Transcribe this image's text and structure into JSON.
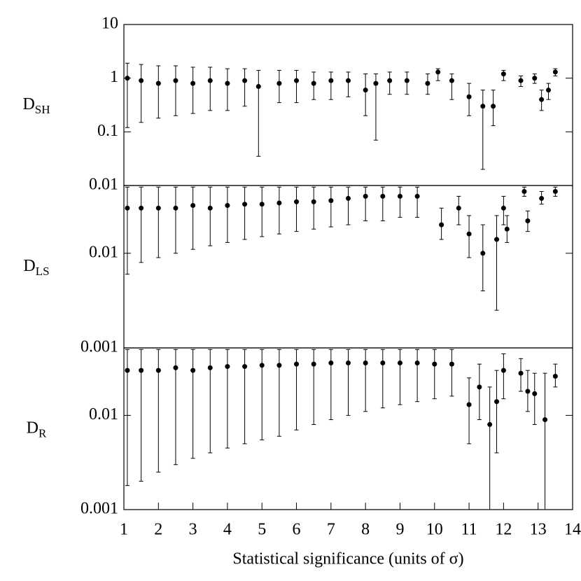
{
  "chart_data": [
    {
      "type": "errorbar-scatter",
      "ylabel": {
        "main": "D",
        "sub": "SH"
      },
      "log_y": true,
      "color": "#000000",
      "xlim": [
        1,
        14
      ],
      "ylim": [
        0.01,
        10
      ],
      "yticks": [
        0.01,
        0.1,
        1,
        10
      ],
      "x": [
        1.1,
        1.5,
        2.0,
        2.5,
        3.0,
        3.5,
        4.0,
        4.5,
        4.9,
        5.5,
        6.0,
        6.5,
        7.0,
        7.5,
        8.0,
        8.3,
        8.7,
        9.2,
        9.8,
        10.1,
        10.5,
        11.0,
        11.4,
        11.7,
        12.0,
        12.5,
        12.9,
        13.1,
        13.3,
        13.5
      ],
      "values": [
        1.0,
        0.9,
        0.8,
        0.9,
        0.8,
        0.9,
        0.8,
        0.9,
        0.7,
        0.8,
        0.9,
        0.8,
        0.9,
        0.9,
        0.6,
        0.8,
        0.9,
        0.9,
        0.8,
        1.3,
        0.9,
        0.45,
        0.3,
        0.3,
        1.2,
        0.9,
        1.0,
        0.4,
        0.6,
        1.3
      ],
      "lower": [
        0.12,
        0.15,
        0.18,
        0.2,
        0.22,
        0.25,
        0.25,
        0.3,
        0.035,
        0.35,
        0.35,
        0.4,
        0.4,
        0.45,
        0.2,
        0.07,
        0.5,
        0.5,
        0.5,
        0.9,
        0.4,
        0.2,
        0.02,
        0.13,
        0.9,
        0.7,
        0.8,
        0.25,
        0.4,
        1.1
      ],
      "upper": [
        1.9,
        1.8,
        1.7,
        1.7,
        1.6,
        1.6,
        1.5,
        1.5,
        1.4,
        1.4,
        1.4,
        1.3,
        1.3,
        1.3,
        1.2,
        1.2,
        1.3,
        1.3,
        1.2,
        1.5,
        1.2,
        0.8,
        0.6,
        0.6,
        1.4,
        1.1,
        1.2,
        0.6,
        0.8,
        1.5
      ]
    },
    {
      "type": "errorbar-scatter",
      "ylabel": {
        "main": "D",
        "sub": "LS"
      },
      "log_y": true,
      "color": "#000000",
      "xlim": [
        1,
        14
      ],
      "ylim": [
        0.001,
        0.052
      ],
      "yticks": [
        0.001,
        0.01
      ],
      "x": [
        1.1,
        1.5,
        2.0,
        2.5,
        3.0,
        3.5,
        4.0,
        4.5,
        5.0,
        5.5,
        6.0,
        6.5,
        7.0,
        7.5,
        8.0,
        8.5,
        9.0,
        9.5,
        10.2,
        10.7,
        11.0,
        11.4,
        11.8,
        12.0,
        12.1,
        12.6,
        12.7,
        13.1,
        13.5
      ],
      "values": [
        0.03,
        0.03,
        0.03,
        0.03,
        0.032,
        0.03,
        0.032,
        0.033,
        0.033,
        0.034,
        0.035,
        0.035,
        0.036,
        0.038,
        0.04,
        0.04,
        0.04,
        0.04,
        0.02,
        0.03,
        0.016,
        0.01,
        0.014,
        0.03,
        0.018,
        0.045,
        0.022,
        0.038,
        0.045
      ],
      "lower": [
        0.006,
        0.008,
        0.009,
        0.01,
        0.011,
        0.012,
        0.013,
        0.014,
        0.015,
        0.016,
        0.017,
        0.018,
        0.019,
        0.02,
        0.022,
        0.022,
        0.024,
        0.024,
        0.014,
        0.02,
        0.009,
        0.004,
        0.0025,
        0.02,
        0.013,
        0.04,
        0.017,
        0.033,
        0.04
      ],
      "upper": [
        0.05,
        0.05,
        0.05,
        0.05,
        0.05,
        0.05,
        0.05,
        0.05,
        0.05,
        0.05,
        0.05,
        0.05,
        0.05,
        0.05,
        0.05,
        0.05,
        0.05,
        0.05,
        0.03,
        0.04,
        0.025,
        0.02,
        0.025,
        0.04,
        0.025,
        0.05,
        0.028,
        0.045,
        0.05
      ]
    },
    {
      "type": "errorbar-scatter",
      "ylabel": {
        "main": "D",
        "sub": "R"
      },
      "log_y": true,
      "color": "#000000",
      "xlim": [
        1,
        14
      ],
      "ylim": [
        0.001,
        0.052
      ],
      "yticks": [
        0.001,
        0.01
      ],
      "xlabel": "Statistical significance (units of σ)",
      "xticks": [
        1,
        2,
        3,
        4,
        5,
        6,
        7,
        8,
        9,
        10,
        11,
        12,
        13,
        14
      ],
      "x": [
        1.1,
        1.5,
        2.0,
        2.5,
        3.0,
        3.5,
        4.0,
        4.5,
        5.0,
        5.5,
        6.0,
        6.5,
        7.0,
        7.5,
        8.0,
        8.5,
        9.0,
        9.5,
        10.0,
        10.5,
        11.0,
        11.3,
        11.6,
        11.8,
        12.0,
        12.5,
        12.7,
        12.9,
        13.2,
        13.5
      ],
      "values": [
        0.03,
        0.03,
        0.03,
        0.032,
        0.03,
        0.032,
        0.033,
        0.033,
        0.034,
        0.034,
        0.035,
        0.035,
        0.036,
        0.036,
        0.036,
        0.036,
        0.036,
        0.036,
        0.035,
        0.035,
        0.013,
        0.02,
        0.008,
        0.014,
        0.03,
        0.028,
        0.018,
        0.017,
        0.009,
        0.026
      ],
      "lower": [
        0.0018,
        0.002,
        0.0025,
        0.003,
        0.0035,
        0.004,
        0.0045,
        0.005,
        0.0055,
        0.006,
        0.007,
        0.008,
        0.009,
        0.01,
        0.011,
        0.012,
        0.013,
        0.014,
        0.015,
        0.016,
        0.005,
        0.009,
        0.001,
        0.004,
        0.015,
        0.018,
        0.011,
        0.008,
        0.001,
        0.02
      ],
      "upper": [
        0.05,
        0.05,
        0.05,
        0.05,
        0.05,
        0.05,
        0.05,
        0.05,
        0.05,
        0.05,
        0.05,
        0.05,
        0.05,
        0.05,
        0.05,
        0.05,
        0.05,
        0.05,
        0.05,
        0.05,
        0.025,
        0.035,
        0.02,
        0.03,
        0.045,
        0.04,
        0.03,
        0.028,
        0.028,
        0.035
      ]
    }
  ]
}
